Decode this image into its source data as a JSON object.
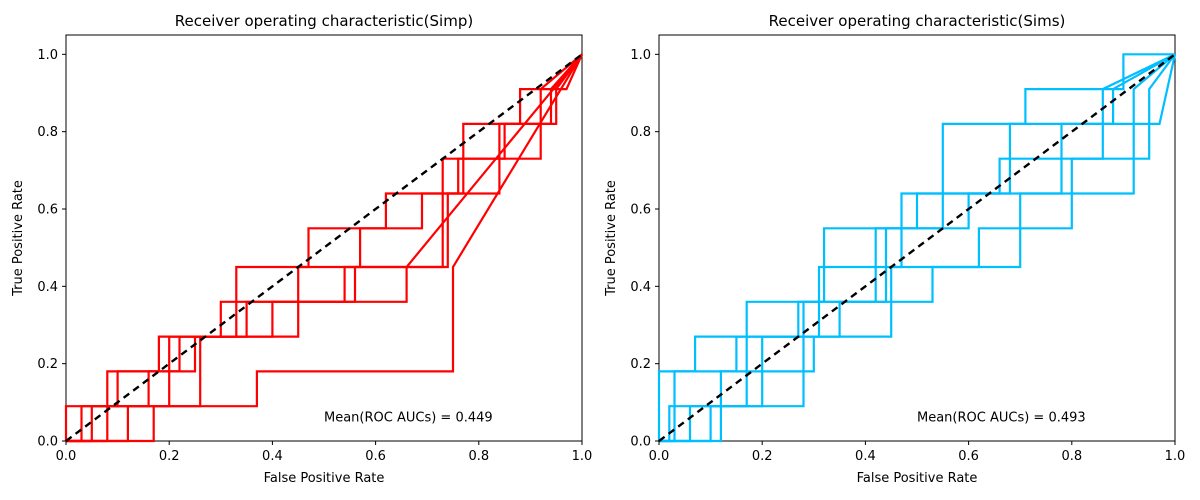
{
  "chart_data": [
    {
      "type": "line",
      "title": "Receiver operating characteristic(Simp)",
      "xlabel": "False Positive Rate",
      "ylabel": "True Positive Rate",
      "xlim": [
        0.0,
        1.0
      ],
      "ylim": [
        0.0,
        1.05
      ],
      "xticks": [
        "0.0",
        "0.2",
        "0.4",
        "0.6",
        "0.8",
        "1.0"
      ],
      "yticks": [
        "0.0",
        "0.2",
        "0.4",
        "0.6",
        "0.8",
        "1.0"
      ],
      "grid": false,
      "annotation": "Mean(ROC AUCs) = 0.449",
      "color": "#ff0000",
      "diagonal": {
        "x": [
          0,
          1
        ],
        "y": [
          0,
          1
        ],
        "color": "#000000",
        "style": "dashed"
      },
      "curves": [
        {
          "x": [
            0,
            0.17,
            0.17,
            0.37,
            0.37,
            0.75,
            0.75,
            1.0
          ],
          "y": [
            0,
            0,
            0.09,
            0.09,
            0.18,
            0.18,
            0.45,
            1.0
          ]
        },
        {
          "x": [
            0,
            0.03,
            0.03,
            0.1,
            0.1,
            0.22,
            0.22,
            0.45,
            0.45,
            0.66,
            0.66,
            1.0
          ],
          "y": [
            0,
            0,
            0.09,
            0.09,
            0.18,
            0.18,
            0.27,
            0.27,
            0.36,
            0.36,
            0.45,
            1.0
          ]
        },
        {
          "x": [
            0,
            0.05,
            0.05,
            0.16,
            0.16,
            0.25,
            0.25,
            0.35,
            0.35,
            0.56,
            0.56,
            0.73,
            0.73,
            0.92,
            0.92,
            1.0
          ],
          "y": [
            0,
            0,
            0.09,
            0.09,
            0.18,
            0.18,
            0.27,
            0.27,
            0.36,
            0.36,
            0.45,
            0.45,
            0.73,
            0.73,
            0.91,
            1.0
          ]
        },
        {
          "x": [
            0,
            0.0,
            0.2,
            0.2,
            0.3,
            0.3,
            0.45,
            0.45,
            0.57,
            0.57,
            0.69,
            0.69,
            0.77,
            0.77,
            0.88,
            0.88,
            0.97,
            1.0
          ],
          "y": [
            0,
            0.09,
            0.09,
            0.27,
            0.27,
            0.36,
            0.36,
            0.45,
            0.45,
            0.55,
            0.55,
            0.64,
            0.64,
            0.82,
            0.82,
            0.91,
            0.91,
            1.0
          ]
        },
        {
          "x": [
            0,
            0.08,
            0.08,
            0.18,
            0.18,
            0.33,
            0.33,
            0.47,
            0.47,
            0.62,
            0.62,
            0.76,
            0.76,
            0.85,
            0.85,
            0.95,
            0.95,
            1.0
          ],
          "y": [
            0,
            0,
            0.18,
            0.18,
            0.27,
            0.27,
            0.45,
            0.45,
            0.55,
            0.55,
            0.64,
            0.64,
            0.73,
            0.73,
            0.82,
            0.82,
            0.91,
            1.0
          ]
        },
        {
          "x": [
            0,
            0.12,
            0.12,
            0.26,
            0.26,
            0.4,
            0.4,
            0.54,
            0.54,
            0.74,
            0.74,
            0.84,
            0.84,
            0.94,
            0.94,
            1.0
          ],
          "y": [
            0,
            0,
            0.09,
            0.09,
            0.27,
            0.27,
            0.36,
            0.36,
            0.45,
            0.45,
            0.64,
            0.64,
            0.82,
            0.82,
            0.91,
            1.0
          ]
        }
      ]
    },
    {
      "type": "line",
      "title": "Receiver operating characteristic(Sims)",
      "xlabel": "False Positive Rate",
      "ylabel": "True Positive Rate",
      "xlim": [
        0.0,
        1.0
      ],
      "ylim": [
        0.0,
        1.05
      ],
      "xticks": [
        "0.0",
        "0.2",
        "0.4",
        "0.6",
        "0.8",
        "1.0"
      ],
      "yticks": [
        "0.0",
        "0.2",
        "0.4",
        "0.6",
        "0.8",
        "1.0"
      ],
      "grid": false,
      "annotation": "Mean(ROC AUCs) = 0.493",
      "color": "#00bfff",
      "diagonal": {
        "x": [
          0,
          1
        ],
        "y": [
          0,
          1
        ],
        "color": "#000000",
        "style": "dashed"
      },
      "curves": [
        {
          "x": [
            0,
            0.1,
            0.1,
            0.28,
            0.28,
            0.44,
            0.44,
            0.55,
            0.55,
            0.71,
            0.71,
            0.9,
            0.9,
            1.0
          ],
          "y": [
            0,
            0,
            0.09,
            0.09,
            0.36,
            0.36,
            0.55,
            0.55,
            0.82,
            0.82,
            0.91,
            0.91,
            1.0,
            1.0
          ]
        },
        {
          "x": [
            0,
            0.0,
            0.07,
            0.07,
            0.27,
            0.27,
            0.42,
            0.42,
            0.6,
            0.6,
            0.78,
            0.78,
            0.97,
            1.0
          ],
          "y": [
            0,
            0.18,
            0.18,
            0.27,
            0.27,
            0.36,
            0.36,
            0.55,
            0.55,
            0.64,
            0.64,
            0.82,
            0.82,
            1.0
          ]
        },
        {
          "x": [
            0,
            0.03,
            0.03,
            0.15,
            0.15,
            0.31,
            0.31,
            0.47,
            0.47,
            0.66,
            0.66,
            0.86,
            0.86,
            1.0
          ],
          "y": [
            0,
            0,
            0.18,
            0.18,
            0.27,
            0.27,
            0.45,
            0.45,
            0.64,
            0.64,
            0.73,
            0.73,
            0.91,
            1.0
          ]
        },
        {
          "x": [
            0,
            0.06,
            0.06,
            0.2,
            0.2,
            0.35,
            0.35,
            0.53,
            0.53,
            0.7,
            0.7,
            0.92,
            0.92,
            1.0
          ],
          "y": [
            0,
            0,
            0.09,
            0.09,
            0.27,
            0.27,
            0.36,
            0.36,
            0.45,
            0.45,
            0.64,
            0.64,
            0.91,
            1.0
          ]
        },
        {
          "x": [
            0,
            0.12,
            0.12,
            0.3,
            0.3,
            0.45,
            0.45,
            0.62,
            0.62,
            0.8,
            0.8,
            0.95,
            0.95,
            1.0
          ],
          "y": [
            0,
            0,
            0.18,
            0.18,
            0.27,
            0.27,
            0.45,
            0.45,
            0.55,
            0.55,
            0.73,
            0.73,
            0.91,
            1.0
          ]
        },
        {
          "x": [
            0,
            0.02,
            0.02,
            0.17,
            0.17,
            0.32,
            0.32,
            0.5,
            0.5,
            0.68,
            0.68,
            0.88,
            0.88,
            1.0
          ],
          "y": [
            0,
            0,
            0.09,
            0.09,
            0.36,
            0.36,
            0.55,
            0.55,
            0.64,
            0.64,
            0.82,
            0.82,
            0.91,
            1.0
          ]
        }
      ]
    }
  ]
}
